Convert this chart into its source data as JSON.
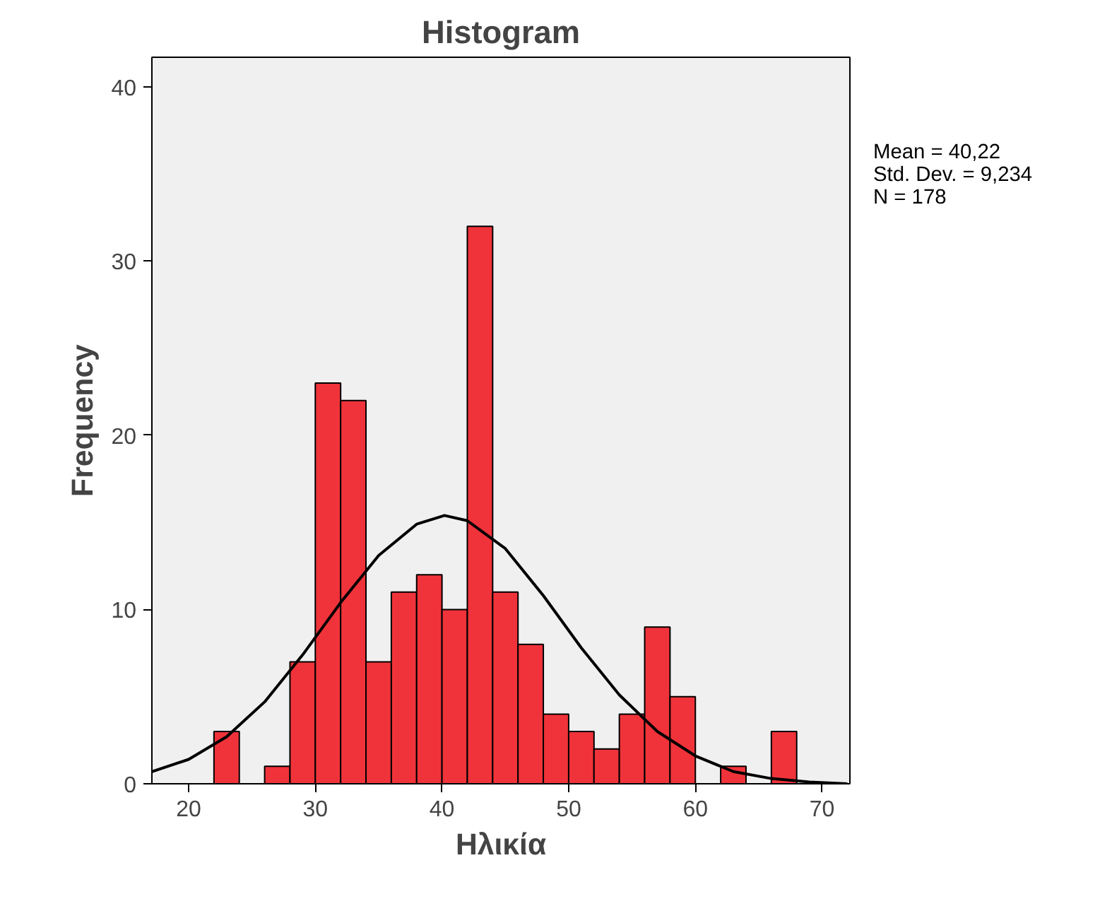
{
  "chart_data": {
    "type": "histogram",
    "title": "Histogram",
    "xlabel": "Ηλικία",
    "ylabel": "Frequency",
    "bins": [
      22,
      24,
      26,
      28,
      30,
      32,
      34,
      36,
      38,
      40,
      42,
      44,
      46,
      48,
      50,
      52,
      54,
      56,
      58,
      60,
      62,
      64,
      66,
      68
    ],
    "values": [
      3,
      0,
      1,
      7,
      23,
      22,
      7,
      11,
      12,
      10,
      32,
      11,
      8,
      4,
      3,
      2,
      4,
      9,
      5,
      0,
      1,
      0,
      3
    ],
    "color": "#f0333a",
    "series": [
      {
        "type": "line",
        "color": "#000000",
        "x": [
          17.1,
          20,
          23,
          26,
          29,
          32,
          35,
          38,
          40.2,
          42,
          45,
          48,
          51,
          54,
          57,
          60,
          63,
          66,
          69,
          72
        ],
        "values": [
          0.7,
          1.4,
          2.7,
          4.7,
          7.4,
          10.4,
          13.1,
          14.9,
          15.4,
          15.1,
          13.5,
          10.8,
          7.8,
          5.1,
          3.0,
          1.6,
          0.7,
          0.3,
          0.1,
          0.0
        ]
      }
    ],
    "xlim": [
      17.1,
      72.2
    ],
    "ylim": [
      0,
      41.7
    ],
    "xticks": [
      20,
      30,
      40,
      50,
      60,
      70
    ],
    "yticks": [
      0,
      10,
      20,
      30,
      40
    ],
    "grid": false,
    "annotations": [
      "Mean = 40,22",
      "Std. Dev. = 9,234",
      "N = 178"
    ]
  }
}
